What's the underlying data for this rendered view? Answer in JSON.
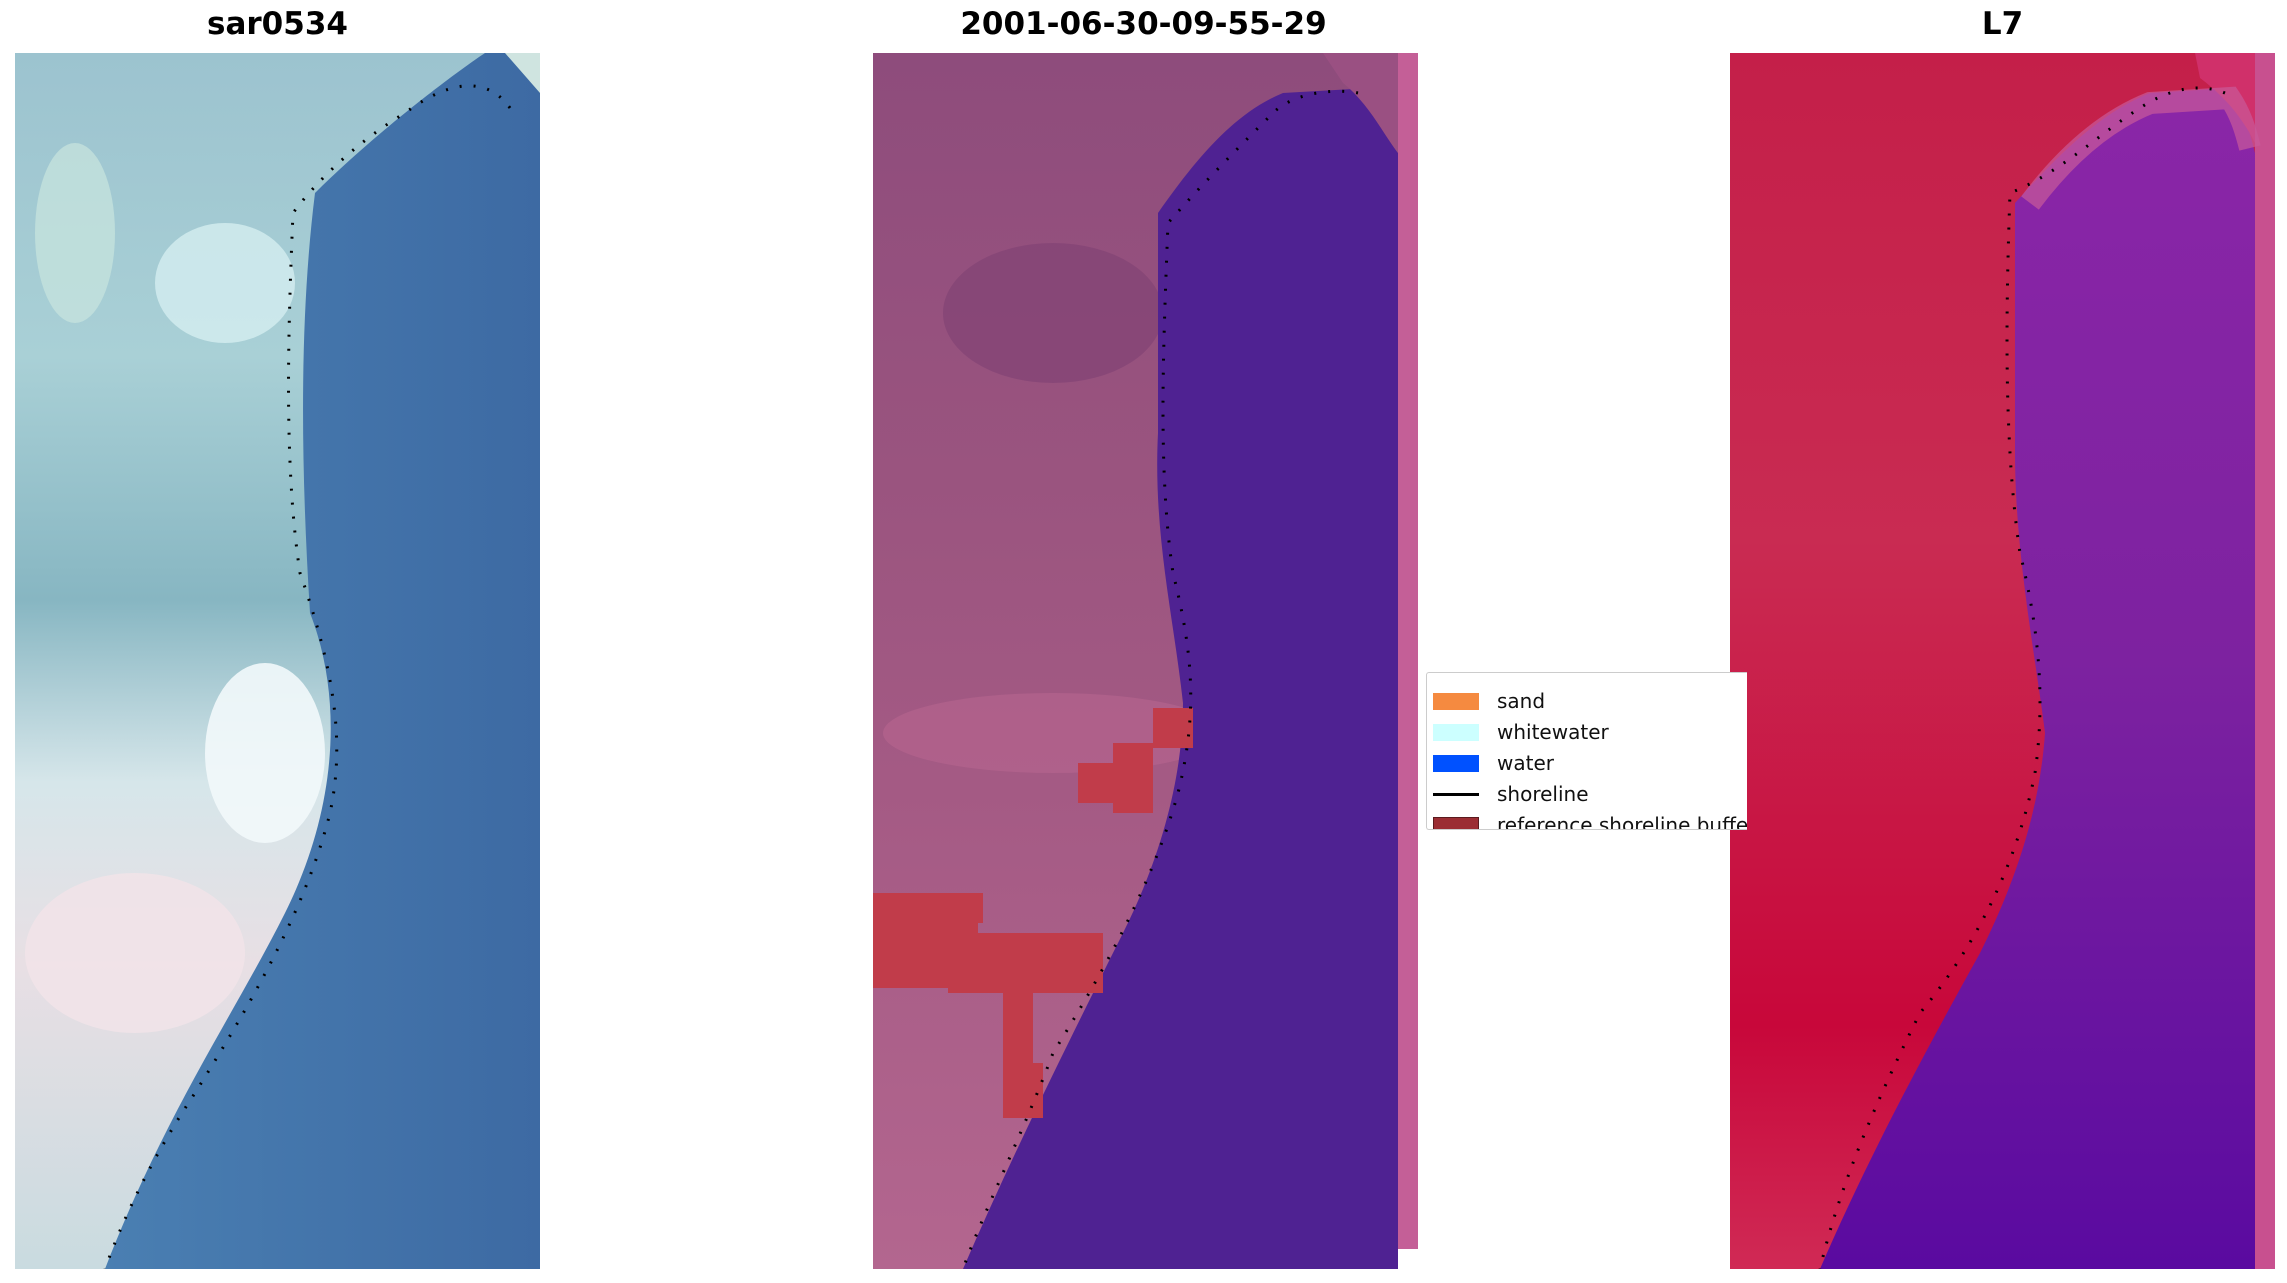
{
  "panels": [
    {
      "title": "sar0534",
      "palette": "natural-rgb"
    },
    {
      "title": "2001-06-30-09-55-29",
      "palette": "classification-overlay"
    },
    {
      "title": "L7",
      "palette": "false-color-index"
    }
  ],
  "legend": {
    "items": [
      {
        "label": "sand",
        "kind": "patch",
        "color": "#f58a40"
      },
      {
        "label": "whitewater",
        "kind": "patch",
        "color": "#ccffff"
      },
      {
        "label": "water",
        "kind": "patch",
        "color": "#0051ff"
      },
      {
        "label": "shoreline",
        "kind": "line",
        "color": "#000000"
      },
      {
        "label": "reference shoreline buffer",
        "kind": "patch",
        "color": "#9b2d33"
      }
    ]
  },
  "colors": {
    "water_blue": "#3f6fa5",
    "land_teal": "#8fb9c4",
    "class_land": "#94527e",
    "class_water": "#512395",
    "class_buffer": "#c13d4c",
    "index_land": "#c71f47",
    "index_water": "#7a20a0",
    "shoreline_dots": "#000000"
  }
}
